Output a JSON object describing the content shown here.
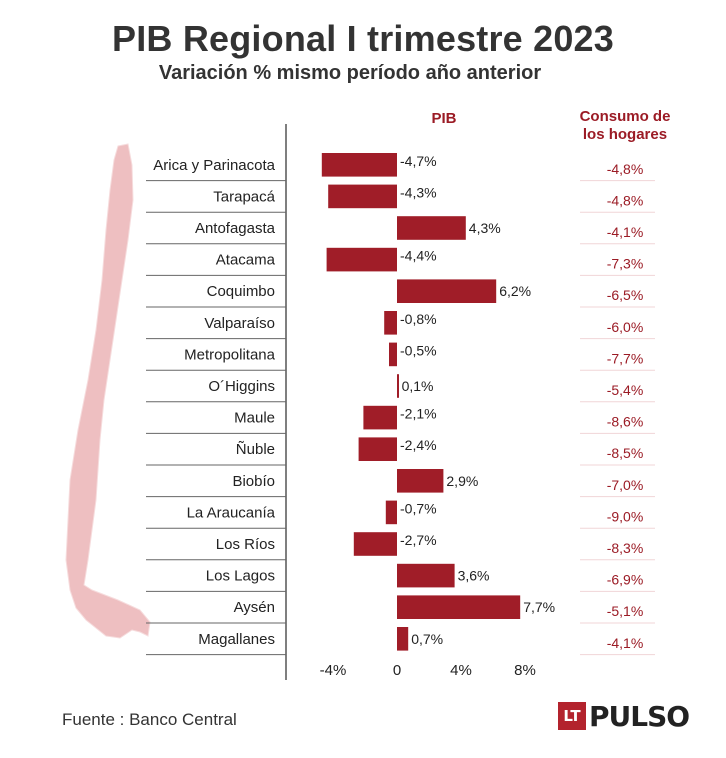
{
  "title": "PIB Regional I trimestre 2023",
  "subtitle": "Variación % mismo período año anterior",
  "source": "Fuente : Banco Central",
  "logo": {
    "mark": "LT",
    "word": "PULSO"
  },
  "colors": {
    "bar": "#a01d28",
    "accent": "#9b1b25",
    "map": "#eebfc1"
  },
  "chart_data": {
    "type": "bar",
    "orientation": "horizontal",
    "series_header": "PIB",
    "consumption_header": [
      "Consumo de",
      "los hogares"
    ],
    "categories": [
      "Arica y Parinacota",
      "Tarapacá",
      "Antofagasta",
      "Atacama",
      "Coquimbo",
      "Valparaíso",
      "Metropolitana",
      "O´Higgins",
      "Maule",
      "Ñuble",
      "Biobío",
      "La Araucanía",
      "Los Ríos",
      "Los Lagos",
      "Aysén",
      "Magallanes"
    ],
    "values": [
      -4.7,
      -4.3,
      4.3,
      -4.4,
      6.2,
      -0.8,
      -0.5,
      0.1,
      -2.1,
      -2.4,
      2.9,
      -0.7,
      -2.7,
      3.6,
      7.7,
      0.7
    ],
    "value_labels": [
      "-4,7%",
      "-4,3%",
      "4,3%",
      "-4,4%",
      "6,2%",
      "-0,8%",
      "-0,5%",
      "0,1%",
      "-2,1%",
      "-2,4%",
      "2,9%",
      "-0,7%",
      "-2,7%",
      "3,6%",
      "7,7%",
      "0,7%"
    ],
    "consumption_labels": [
      "-4,8%",
      "-4,8%",
      "-4,1%",
      "-7,3%",
      "-6,5%",
      "-6,0%",
      "-7,7%",
      "-5,4%",
      "-8,6%",
      "-8,5%",
      "-7,0%",
      "-9,0%",
      "-8,3%",
      "-6,9%",
      "-5,1%",
      "-4,1%"
    ],
    "xlim": [
      -6.5,
      8.5
    ],
    "xticks": [
      -4,
      0,
      4,
      8
    ],
    "xtick_labels": [
      "-4%",
      "0",
      "4%",
      "8%"
    ],
    "grid": false
  }
}
